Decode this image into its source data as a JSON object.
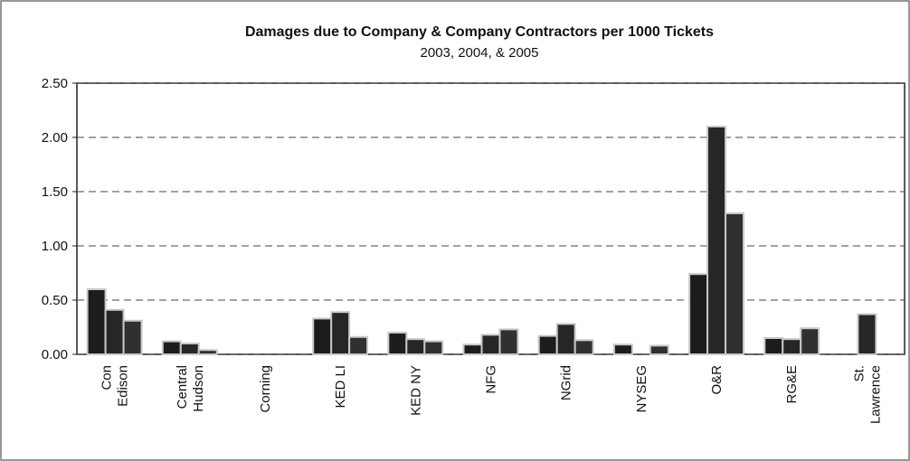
{
  "chart_data": {
    "type": "bar",
    "title": "Damages due to Company & Company Contractors per 1000 Tickets",
    "subtitle": "2003, 2004, & 2005",
    "categories": [
      "Con\nEdison",
      "Central\nHudson",
      "Corning",
      "KED LI",
      "KED NY",
      "NFG",
      "NGrid",
      "NYSEG",
      "O&R",
      "RG&E",
      "St.\nLawrence"
    ],
    "series": [
      {
        "color": "#1c1c1c",
        "values": [
          0.6,
          0.12,
          0,
          0.33,
          0.2,
          0.09,
          0.17,
          0.09,
          0.74,
          0.15,
          0
        ]
      },
      {
        "color": "#262626",
        "values": [
          0.41,
          0.1,
          0,
          0.39,
          0.14,
          0.18,
          0.28,
          0,
          2.1,
          0.14,
          0.37
        ]
      },
      {
        "color": "#303030",
        "values": [
          0.31,
          0.04,
          0,
          0.16,
          0.12,
          0.23,
          0.13,
          0.08,
          1.3,
          0.24,
          0
        ]
      }
    ],
    "ylim": [
      0,
      2.5
    ],
    "yticks": [
      {
        "value": 0,
        "label": "0.00"
      },
      {
        "value": 0.5,
        "label": "0.50"
      },
      {
        "value": 1,
        "label": "1.00"
      },
      {
        "value": 1.5,
        "label": "1.50"
      },
      {
        "value": 2,
        "label": "2.00"
      },
      {
        "value": 2.5,
        "label": "2.50"
      }
    ],
    "grid": true
  }
}
